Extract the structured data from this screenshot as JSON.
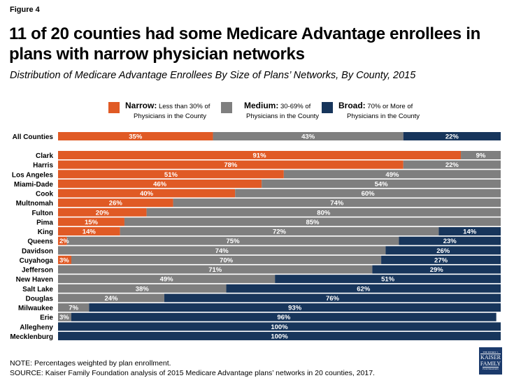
{
  "figure_label": "Figure 4",
  "title": "11 of 20 counties had some Medicare Advantage enrollees in plans with narrow physician networks",
  "subtitle": "Distribution of Medicare Advantage Enrollees By Size of Plans’ Networks, By County, 2015",
  "note": "NOTE: Percentages weighted by plan enrollment.",
  "source": "SOURCE: Kaiser Family Foundation  analysis of 2015 Medicare Advantage plans’ networks in 20 counties, 2017.",
  "logo": {
    "line1": "THE HENRY J.",
    "line2": "KAISER",
    "line3": "FAMILY",
    "line4": "FOUNDATION"
  },
  "colors": {
    "narrow": "#e05a25",
    "medium": "#7f7f7f",
    "broad": "#17355b",
    "label": "#ffffff"
  },
  "chart_data": {
    "type": "bar",
    "orientation": "horizontal",
    "stacked": true,
    "percent": true,
    "title": "11 of 20 counties had some Medicare Advantage enrollees in plans with narrow physician networks",
    "subtitle": "Distribution of Medicare Advantage Enrollees By Size of Plans’ Networks, By County, 2015",
    "xlim": [
      0,
      100
    ],
    "grid": false,
    "legend_position": "top",
    "legend": [
      {
        "key": "narrow",
        "bold": "Narrow:",
        "rest1": " Less than 30% of",
        "rest2": "Physicians in the County"
      },
      {
        "key": "medium",
        "bold": "Medium:",
        "rest1": " 30-69% of",
        "rest2": "Physicians in the County"
      },
      {
        "key": "broad",
        "bold": "Broad:",
        "rest1": " 70% or More of",
        "rest2": "Physicians in the County"
      }
    ],
    "categories": [
      "All Counties",
      "Clark",
      "Harris",
      "Los Angeles",
      "Miami-Dade",
      "Cook",
      "Multnomah",
      "Fulton",
      "Pima",
      "King",
      "Queens",
      "Davidson",
      "Cuyahoga",
      "Jefferson",
      "New Haven",
      "Salt Lake",
      "Douglas",
      "Milwaukee",
      "Erie",
      "Allegheny",
      "Mecklenburg"
    ],
    "series": [
      {
        "name": "Narrow",
        "key": "narrow",
        "values": [
          35,
          91,
          78,
          51,
          46,
          40,
          26,
          20,
          15,
          14,
          2,
          0,
          3,
          0,
          0,
          0,
          0,
          0,
          0,
          0,
          0
        ]
      },
      {
        "name": "Medium",
        "key": "medium",
        "values": [
          43,
          9,
          22,
          49,
          54,
          60,
          74,
          80,
          85,
          72,
          75,
          74,
          70,
          71,
          49,
          38,
          24,
          7,
          3,
          0,
          0
        ]
      },
      {
        "name": "Broad",
        "key": "broad",
        "values": [
          22,
          0,
          0,
          0,
          0,
          0,
          0,
          0,
          0,
          14,
          23,
          26,
          27,
          29,
          51,
          62,
          76,
          93,
          96,
          100,
          100
        ]
      }
    ]
  }
}
